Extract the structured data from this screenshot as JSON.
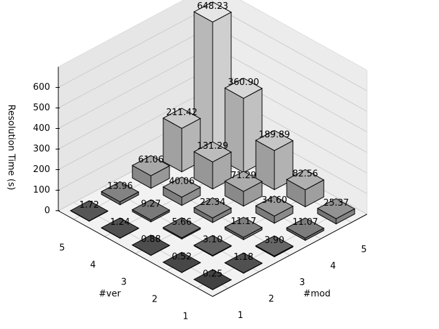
{
  "chart_data": {
    "type": "bar3d",
    "zlabel": "Resolution Time (s)",
    "xlabel": "#mod",
    "ylabel": "#ver",
    "xticks": [
      1,
      2,
      3,
      4,
      5
    ],
    "yticks": [
      1,
      2,
      3,
      4,
      5
    ],
    "zlim": [
      0,
      700
    ],
    "zticks": [
      0,
      100,
      200,
      300,
      400,
      500,
      600
    ],
    "grid": true,
    "values": [
      [
        0.25,
        1.18,
        3.9,
        11.07,
        25.37
      ],
      [
        0.52,
        3.1,
        11.17,
        34.6,
        82.56
      ],
      [
        0.88,
        5.66,
        22.34,
        71.29,
        189.89
      ],
      [
        1.24,
        9.27,
        40.06,
        131.29,
        360.9
      ],
      [
        1.72,
        13.96,
        61.06,
        211.42,
        648.23
      ]
    ],
    "value_labels": [
      [
        "0.25",
        "1.18",
        "3.90",
        "11.07",
        "25.37"
      ],
      [
        "0.52",
        "3.10",
        "11.17",
        "34.60",
        "82.56"
      ],
      [
        "0.88",
        "5.66",
        "22.34",
        "71.29",
        "189.89"
      ],
      [
        "1.24",
        "9.27",
        "40.06",
        "131.29",
        "360.90"
      ],
      [
        "1.72",
        "13.96",
        "61.06",
        "211.42",
        "648.23"
      ]
    ]
  }
}
